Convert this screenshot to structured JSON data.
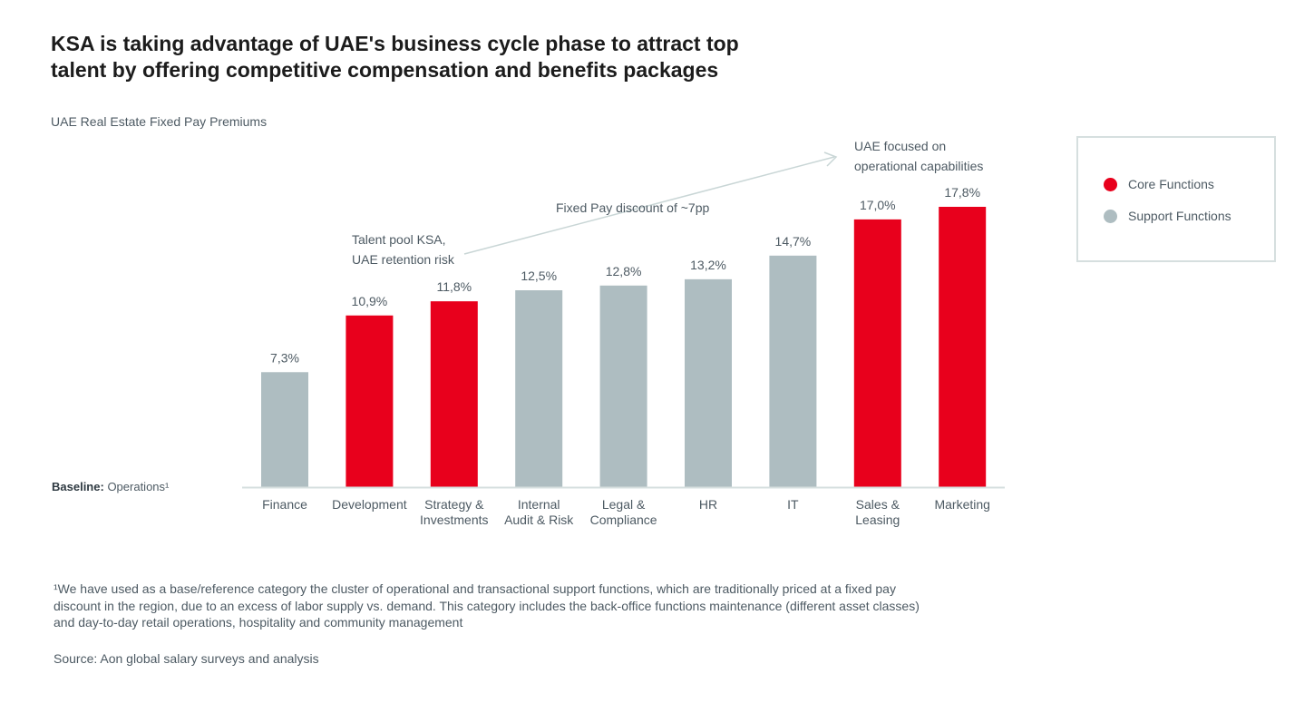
{
  "title": "KSA is taking advantage of UAE's business cycle phase to attract top talent by offering competitive compensation and benefits packages",
  "subtitle": "UAE Real Estate Fixed Pay Premiums",
  "baseline": {
    "label": "Baseline:",
    "value": "Operations¹"
  },
  "annotations": {
    "talent_pool": [
      "Talent pool KSA,",
      "UAE retention risk"
    ],
    "discount": "Fixed Pay discount of ~7pp",
    "uae_focus": [
      "UAE focused on",
      "operational capabilities"
    ]
  },
  "legend": {
    "items": [
      {
        "label": "Core Functions",
        "color": "#e8001c"
      },
      {
        "label": "Support Functions",
        "color": "#aebdc1"
      }
    ]
  },
  "footnote": "¹We have used as a base/reference category the cluster of operational and transactional support functions, which are traditionally priced at a fixed pay discount in the region, due to an excess of labor supply vs. demand. This category includes the back-office functions maintenance (different asset classes) and day-to-day retail operations, hospitality and community management",
  "source": "Source: Aon global salary surveys and analysis",
  "colors": {
    "core": "#e8001c",
    "support": "#aebdc1",
    "axis": "#d6dfdf",
    "arrow": "#c9d6d6"
  },
  "chart_data": {
    "type": "bar",
    "categories": [
      [
        "Finance"
      ],
      [
        "Development"
      ],
      [
        "Strategy &",
        "Investments"
      ],
      [
        "Internal",
        "Audit & Risk"
      ],
      [
        "Legal &",
        "Compliance"
      ],
      [
        "HR"
      ],
      [
        "IT"
      ],
      [
        "Sales &",
        "Leasing"
      ],
      [
        "Marketing"
      ]
    ],
    "values": [
      7.3,
      10.9,
      11.8,
      12.5,
      12.8,
      13.2,
      14.7,
      17.0,
      17.8
    ],
    "value_labels": [
      "7,3%",
      "10,9%",
      "11,8%",
      "12,5%",
      "12,8%",
      "13,2%",
      "14,7%",
      "17,0%",
      "17,8%"
    ],
    "groups": [
      "Support Functions",
      "Core Functions",
      "Core Functions",
      "Support Functions",
      "Support Functions",
      "Support Functions",
      "Support Functions",
      "Core Functions",
      "Core Functions"
    ],
    "ylim": [
      0,
      17.8
    ],
    "xlabel": "",
    "ylabel": "",
    "grid": false,
    "legend_position": "top-right"
  }
}
